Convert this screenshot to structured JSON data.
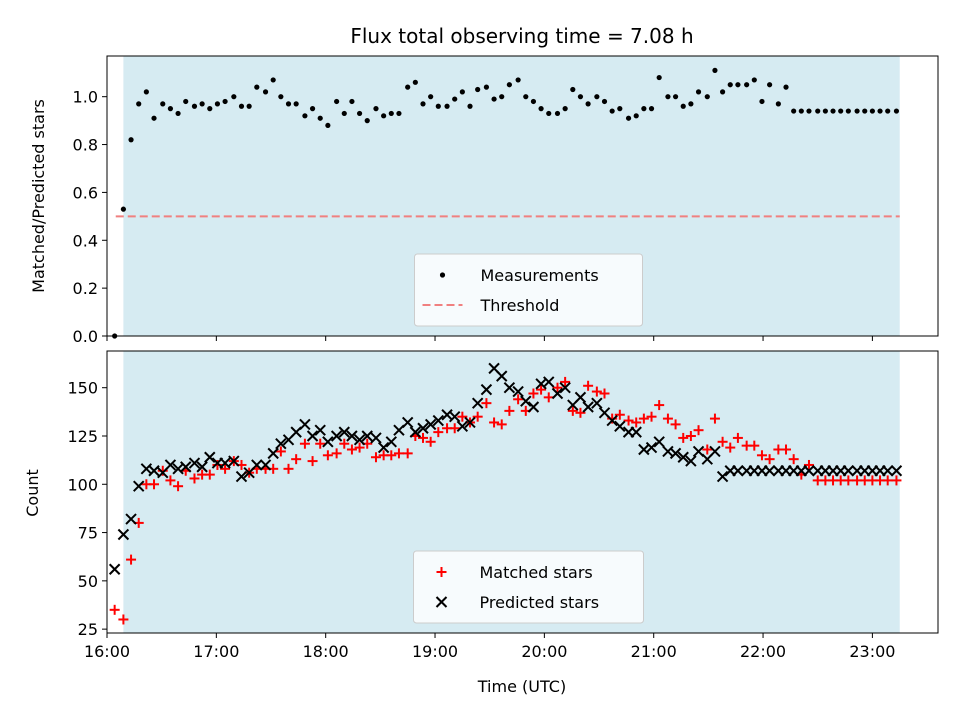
{
  "colors": {
    "shade": "#add8e6",
    "measurement": "#000000",
    "threshold": "#f08080",
    "matched": "#ff0000",
    "predicted": "#000000"
  },
  "chart_data": [
    {
      "type": "scatter",
      "title": "Flux total observing time = 7.08 h",
      "xlabel": "",
      "ylabel": "Matched/Predicted stars",
      "xlim": [
        16.0,
        23.6
      ],
      "ylim": [
        0.0,
        1.17
      ],
      "xticks": [
        16,
        17,
        18,
        19,
        20,
        21,
        22,
        23
      ],
      "yticks": [
        0.0,
        0.2,
        0.4,
        0.6,
        0.8,
        1.0
      ],
      "ytick_labels": [
        "0.0",
        "0.2",
        "0.4",
        "0.6",
        "0.8",
        "1.0"
      ],
      "shaded_span": [
        16.15,
        23.25
      ],
      "threshold": 0.5,
      "threshold_x": [
        16.08,
        23.25
      ],
      "legend_position": "lower center",
      "legend": [
        "Measurements",
        "Threshold"
      ],
      "series": [
        {
          "name": "Measurements",
          "x": [
            16.07,
            16.15,
            16.22,
            16.29,
            16.36,
            16.43,
            16.51,
            16.58,
            16.65,
            16.72,
            16.8,
            16.87,
            16.94,
            17.01,
            17.08,
            17.16,
            17.23,
            17.3,
            17.37,
            17.45,
            17.52,
            17.59,
            17.66,
            17.73,
            17.81,
            17.88,
            17.95,
            18.02,
            18.1,
            18.17,
            18.24,
            18.31,
            18.38,
            18.46,
            18.53,
            18.6,
            18.67,
            18.75,
            18.82,
            18.89,
            18.96,
            19.03,
            19.11,
            19.18,
            19.25,
            19.32,
            19.39,
            19.47,
            19.54,
            19.61,
            19.68,
            19.76,
            19.83,
            19.9,
            19.97,
            20.04,
            20.12,
            20.19,
            20.26,
            20.33,
            20.4,
            20.48,
            20.55,
            20.62,
            20.69,
            20.77,
            20.84,
            20.91,
            20.98,
            21.05,
            21.13,
            21.2,
            21.27,
            21.34,
            21.41,
            21.49,
            21.56,
            21.63,
            21.7,
            21.77,
            21.85,
            21.92,
            21.99,
            22.06,
            22.14,
            22.21,
            22.28,
            22.35,
            22.42,
            22.5,
            22.57,
            22.64,
            22.71,
            22.78,
            22.86,
            22.93,
            23.0,
            23.07,
            23.14,
            23.22
          ],
          "values": [
            0.0,
            0.53,
            0.82,
            0.97,
            1.02,
            0.91,
            0.97,
            0.95,
            0.93,
            0.98,
            0.96,
            0.97,
            0.95,
            0.97,
            0.98,
            1.0,
            0.96,
            0.96,
            1.04,
            1.02,
            1.07,
            1.0,
            0.97,
            0.97,
            0.92,
            0.95,
            0.91,
            0.88,
            0.98,
            0.93,
            0.98,
            0.93,
            0.9,
            0.95,
            0.92,
            0.93,
            0.93,
            1.04,
            1.06,
            0.97,
            1.0,
            0.96,
            0.96,
            0.99,
            1.02,
            0.96,
            1.03,
            1.04,
            0.99,
            1.0,
            1.05,
            1.07,
            1.0,
            0.98,
            0.95,
            0.93,
            0.93,
            0.95,
            1.03,
            1.0,
            0.97,
            1.0,
            0.98,
            0.94,
            0.95,
            0.91,
            0.92,
            0.95,
            0.95,
            1.08,
            1.0,
            1.0,
            0.96,
            0.97,
            1.02,
            1.0,
            1.11,
            1.02,
            1.05,
            1.05,
            1.05,
            1.07,
            0.98,
            1.05,
            0.97,
            1.04,
            0.94,
            0.94,
            0.94,
            0.94,
            0.94,
            0.94,
            0.94,
            0.94,
            0.94,
            0.94,
            0.94,
            0.94,
            0.94,
            0.94
          ]
        }
      ]
    },
    {
      "type": "scatter",
      "title": "",
      "xlabel": "Time (UTC)",
      "ylabel": "Count",
      "xlim": [
        16.0,
        23.6
      ],
      "ylim": [
        23,
        169
      ],
      "xticks": [
        16,
        17,
        18,
        19,
        20,
        21,
        22,
        23
      ],
      "xtick_labels": [
        "16:00",
        "17:00",
        "18:00",
        "19:00",
        "20:00",
        "21:00",
        "22:00",
        "23:00"
      ],
      "yticks": [
        25,
        50,
        75,
        100,
        125,
        150
      ],
      "ytick_labels": [
        "25",
        "50",
        "75",
        "100",
        "125",
        "150"
      ],
      "shaded_span": [
        16.15,
        23.25
      ],
      "legend_position": "lower center",
      "legend": [
        "Matched stars",
        "Predicted stars"
      ],
      "series": [
        {
          "name": "Matched stars",
          "x": [
            16.07,
            16.15,
            16.22,
            16.29,
            16.36,
            16.43,
            16.51,
            16.58,
            16.65,
            16.72,
            16.8,
            16.87,
            16.94,
            17.01,
            17.08,
            17.16,
            17.23,
            17.3,
            17.37,
            17.45,
            17.52,
            17.59,
            17.66,
            17.73,
            17.81,
            17.88,
            17.95,
            18.02,
            18.1,
            18.17,
            18.24,
            18.31,
            18.38,
            18.46,
            18.53,
            18.6,
            18.67,
            18.75,
            18.82,
            18.89,
            18.96,
            19.03,
            19.11,
            19.18,
            19.25,
            19.32,
            19.39,
            19.47,
            19.54,
            19.61,
            19.68,
            19.76,
            19.83,
            19.9,
            19.97,
            20.04,
            20.12,
            20.19,
            20.26,
            20.33,
            20.4,
            20.48,
            20.55,
            20.62,
            20.69,
            20.77,
            20.84,
            20.91,
            20.98,
            21.05,
            21.13,
            21.2,
            21.27,
            21.34,
            21.41,
            21.49,
            21.56,
            21.63,
            21.7,
            21.77,
            21.85,
            21.92,
            21.99,
            22.06,
            22.14,
            22.21,
            22.28,
            22.35,
            22.42,
            22.5,
            22.57,
            22.64,
            22.71,
            22.78,
            22.86,
            22.93,
            23.0,
            23.07,
            23.14,
            23.22
          ],
          "values": [
            35,
            30,
            61,
            80,
            100,
            100,
            107,
            102,
            99,
            107,
            103,
            105,
            105,
            110,
            108,
            112,
            110,
            106,
            108,
            108,
            108,
            117,
            108,
            113,
            121,
            112,
            121,
            115,
            116,
            121,
            118,
            119,
            121,
            114,
            115,
            115,
            116,
            116,
            125,
            124,
            122,
            127,
            129,
            129,
            135,
            132,
            135,
            142,
            132,
            131,
            138,
            144,
            138,
            147,
            149,
            145,
            150,
            153,
            138,
            137,
            151,
            148,
            147,
            134,
            136,
            133,
            132,
            134,
            135,
            141,
            134,
            131,
            124,
            125,
            128,
            118,
            134,
            122,
            119,
            124,
            120,
            120,
            115,
            113,
            118,
            118,
            113,
            105,
            110,
            102,
            102,
            102,
            102,
            102,
            102,
            102,
            102,
            102,
            102,
            102
          ]
        },
        {
          "name": "Predicted stars",
          "x": [
            16.07,
            16.15,
            16.22,
            16.29,
            16.36,
            16.43,
            16.51,
            16.58,
            16.65,
            16.72,
            16.8,
            16.87,
            16.94,
            17.01,
            17.08,
            17.16,
            17.23,
            17.3,
            17.37,
            17.45,
            17.52,
            17.59,
            17.66,
            17.73,
            17.81,
            17.88,
            17.95,
            18.02,
            18.1,
            18.17,
            18.24,
            18.31,
            18.38,
            18.46,
            18.53,
            18.6,
            18.67,
            18.75,
            18.82,
            18.89,
            18.96,
            19.03,
            19.11,
            19.18,
            19.25,
            19.32,
            19.39,
            19.47,
            19.54,
            19.61,
            19.68,
            19.76,
            19.83,
            19.9,
            19.97,
            20.04,
            20.12,
            20.19,
            20.26,
            20.33,
            20.4,
            20.48,
            20.55,
            20.62,
            20.69,
            20.77,
            20.84,
            20.91,
            20.98,
            21.05,
            21.13,
            21.2,
            21.27,
            21.34,
            21.41,
            21.49,
            21.56,
            21.63,
            21.7,
            21.77,
            21.85,
            21.92,
            21.99,
            22.06,
            22.14,
            22.21,
            22.28,
            22.35,
            22.42,
            22.5,
            22.57,
            22.64,
            22.71,
            22.78,
            22.86,
            22.93,
            23.0,
            23.07,
            23.14,
            23.22
          ],
          "values": [
            56,
            74,
            82,
            99,
            108,
            107,
            106,
            110,
            108,
            109,
            111,
            109,
            114,
            111,
            111,
            112,
            104,
            106,
            110,
            110,
            116,
            121,
            123,
            127,
            131,
            125,
            128,
            122,
            125,
            127,
            125,
            123,
            125,
            124,
            119,
            122,
            128,
            132,
            127,
            129,
            131,
            133,
            136,
            135,
            130,
            132,
            142,
            149,
            160,
            156,
            150,
            148,
            143,
            140,
            152,
            153,
            147,
            150,
            141,
            145,
            140,
            142,
            137,
            133,
            130,
            127,
            127,
            118,
            119,
            122,
            117,
            116,
            114,
            112,
            117,
            113,
            117,
            104,
            107,
            107,
            107,
            107,
            107,
            107,
            107,
            107,
            107,
            107,
            107,
            107,
            107,
            107,
            107,
            107,
            107,
            107,
            107,
            107,
            107,
            107
          ]
        }
      ]
    }
  ]
}
